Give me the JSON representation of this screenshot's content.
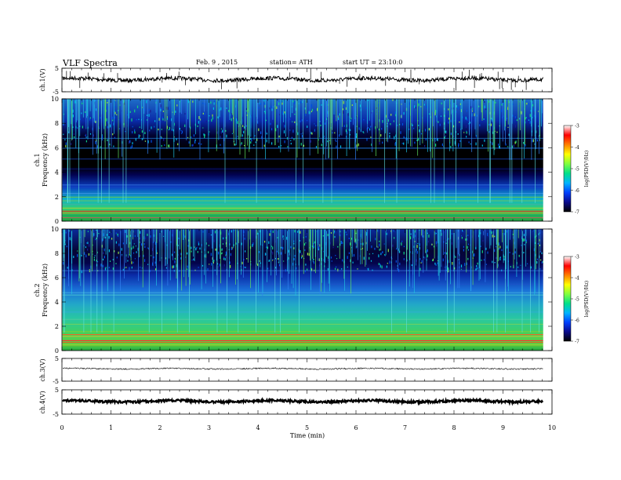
{
  "header": {
    "title": "VLF Spectra",
    "date": "Feb. 9 , 2015",
    "station": "station= ATH",
    "start": "start UT = 23:10:0"
  },
  "colors": {
    "colormap": [
      "#000000",
      "#0a0a8c",
      "#0040ff",
      "#00b4ff",
      "#00e08a",
      "#80ff40",
      "#ffff00",
      "#ff8000",
      "#ff0000",
      "#ffffff"
    ]
  },
  "chart_data": [
    {
      "type": "line",
      "id": "ch1_waveform",
      "ylabel": "ch.1(V)",
      "ylim": [
        -5,
        5
      ],
      "yticks": [
        "5",
        "-5"
      ],
      "x_range_min": [
        0,
        9.8
      ],
      "approx_level_v": 0.3
    },
    {
      "type": "heatmap",
      "id": "ch1_spectrogram",
      "ylabel_channel": "ch.1",
      "ylabel": "Frequency (kHz)",
      "ylim": [
        0,
        10
      ],
      "yticks": [
        "0",
        "2",
        "4",
        "6",
        "8",
        "10"
      ],
      "colorbar": {
        "label": "log(PSD(V²/Hz)",
        "range": [
          -7,
          -3
        ],
        "ticks": [
          "-3",
          "-4",
          "-5",
          "-6",
          "-7"
        ]
      }
    },
    {
      "type": "heatmap",
      "id": "ch2_spectrogram",
      "ylabel_channel": "ch.2",
      "ylabel": "Frequency (kHz)",
      "ylim": [
        0,
        10
      ],
      "yticks": [
        "0",
        "2",
        "4",
        "6",
        "8",
        "10"
      ],
      "colorbar": {
        "label": "log(PSD(V²/Hz)",
        "range": [
          -7,
          -3
        ],
        "ticks": [
          "-3",
          "-4",
          "-5",
          "-6",
          "-7"
        ]
      }
    },
    {
      "type": "line",
      "id": "ch3_waveform",
      "ylabel": "ch.3(V)",
      "ylim": [
        -5,
        5
      ],
      "yticks": [
        "5",
        "-5"
      ],
      "approx_level_v": 0.5
    },
    {
      "type": "line",
      "id": "ch4_waveform",
      "ylabel": "ch.4(V)",
      "ylim": [
        -5,
        5
      ],
      "yticks": [
        "5",
        "-5"
      ],
      "approx_level_v": 0.3
    }
  ],
  "x_axis": {
    "label": "Time (min)",
    "xlim": [
      0,
      10
    ],
    "ticks": [
      "0",
      "1",
      "2",
      "3",
      "4",
      "5",
      "6",
      "7",
      "8",
      "9",
      "10"
    ]
  }
}
